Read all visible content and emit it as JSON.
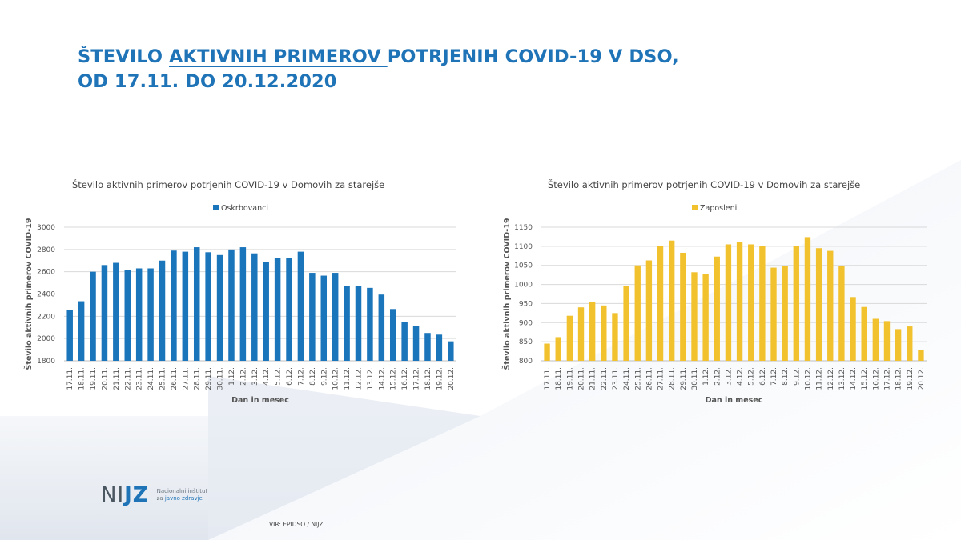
{
  "slide": {
    "title_part1": "ŠTEVILO ",
    "title_underlined": "AKTIVNIH PRIMEROV ",
    "title_part2": "POTRJENIH COVID-19 V DSO,",
    "title_line2": "OD 17.11. DO 20.12.2020",
    "source": "VIR: EPIDSO / NIJZ"
  },
  "logo": {
    "mark_left": "NI",
    "mark_right": "JZ",
    "line1": "Nacionalni inštitut",
    "line2_prefix": "za ",
    "line2_blue": "javno zdravje"
  },
  "colors": {
    "title": "#1f73b7",
    "series_oskrbovanci": "#1b75bb",
    "series_zaposleni": "#f2c12e",
    "gridline": "#d9d9d9"
  },
  "chart_data": [
    {
      "type": "bar",
      "title": "Število aktivnih primerov  potrjenih  COVID-19 v Domovih  za starejše",
      "xlabel": "Dan in mesec",
      "ylabel": "Število aktivnih primerov COVID-19",
      "ylim": [
        1800,
        3000
      ],
      "yticks": [
        "1800",
        "2000",
        "2200",
        "2400",
        "2600",
        "2800",
        "3000"
      ],
      "grid": true,
      "legend_position": "top-center",
      "categories": [
        "17.11.",
        "18.11.",
        "19.11.",
        "20.11.",
        "21.11.",
        "22.11.",
        "23.11.",
        "24.11.",
        "25.11.",
        "26.11.",
        "27.11.",
        "28.11.",
        "29.11.",
        "30.11.",
        "1.12.",
        "2.12.",
        "3.12.",
        "4.12.",
        "5.12.",
        "6.12.",
        "7.12.",
        "8.12.",
        "9.12.",
        "10.12.",
        "11.12.",
        "12.12.",
        "13.12.",
        "14.12.",
        "15.12.",
        "16.12.",
        "17.12.",
        "18.12.",
        "19.12.",
        "20.12."
      ],
      "series": [
        {
          "name": "Oskrbovanci",
          "color": "#1b75bb",
          "values": [
            2255,
            2335,
            2600,
            2660,
            2680,
            2615,
            2630,
            2630,
            2700,
            2790,
            2780,
            2820,
            2775,
            2750,
            2800,
            2820,
            2765,
            2690,
            2720,
            2725,
            2780,
            2590,
            2565,
            2590,
            2475,
            2475,
            2455,
            2395,
            2265,
            2145,
            2110,
            2050,
            2035,
            1975
          ]
        }
      ]
    },
    {
      "type": "bar",
      "title": "Število aktivnih primerov  potrjenih  COVID-19 v Domovih  za starejše",
      "xlabel": "Dan in mesec",
      "ylabel": "Število aktivnih primerov COVID-19",
      "ylim": [
        800,
        1150
      ],
      "yticks": [
        "800",
        "850",
        "900",
        "950",
        "1000",
        "1050",
        "1100",
        "1150"
      ],
      "grid": true,
      "legend_position": "top-center",
      "categories": [
        "17.11.",
        "18.11.",
        "19.11.",
        "20.11.",
        "21.11.",
        "22.11.",
        "23.11.",
        "24.11.",
        "25.11.",
        "26.11.",
        "27.11.",
        "28.11.",
        "29.11.",
        "30.11.",
        "1.12.",
        "2.12.",
        "3.12.",
        "4.12.",
        "5.12.",
        "6.12.",
        "7.12.",
        "8.12.",
        "9.12.",
        "10.12.",
        "11.12.",
        "12.12.",
        "13.12.",
        "14.12.",
        "15.12.",
        "16.12.",
        "17.12.",
        "18.12.",
        "19.12.",
        "20.12."
      ],
      "series": [
        {
          "name": "Zaposleni",
          "color": "#f2c12e",
          "values": [
            845,
            862,
            918,
            940,
            953,
            945,
            925,
            997,
            1050,
            1063,
            1100,
            1115,
            1083,
            1032,
            1028,
            1073,
            1105,
            1112,
            1105,
            1100,
            1044,
            1048,
            1100,
            1124,
            1095,
            1088,
            1048,
            967,
            941,
            910,
            904,
            883,
            890,
            829
          ]
        }
      ]
    }
  ]
}
